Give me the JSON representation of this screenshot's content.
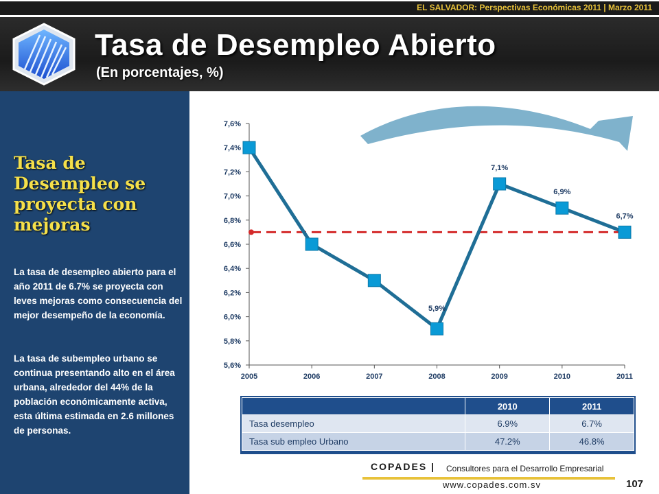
{
  "header": {
    "top_subtitle": "EL SALVADOR: Perspectivas Económicas 2011 | Marzo 2011",
    "title": "Tasa de Desempleo Abierto",
    "subtitle": "(En porcentajes, %)"
  },
  "sidebar": {
    "heading": "Tasa de Desempleo se proyecta con mejoras",
    "paragraph1": "La tasa de desempleo abierto para el año 2011 de 6.7% se proyecta con leves mejoras como consecuencia del mejor desempeño de la economía.",
    "paragraph2": "La tasa de subempleo urbano se continua presentando alto en el área urbana, alrededor del 44% de la población económicamente activa, esta última estimada en 2.6 millones de personas."
  },
  "chart_data": {
    "type": "line",
    "x": [
      "2005",
      "2006",
      "2007",
      "2008",
      "2009",
      "2010",
      "2011"
    ],
    "values": [
      7.4,
      6.6,
      6.3,
      5.9,
      7.1,
      6.9,
      6.7
    ],
    "data_labels": [
      "",
      "",
      "",
      "5,9%",
      "7,1%",
      "6,9%",
      "6,7%"
    ],
    "y_ticks": [
      "5,6%",
      "5,8%",
      "6,0%",
      "6,2%",
      "6,4%",
      "6,6%",
      "6,8%",
      "7,0%",
      "7,2%",
      "7,4%",
      "7,6%"
    ],
    "ylim": [
      5.6,
      7.6
    ],
    "reference_line": 6.7,
    "colors": {
      "line": "#1f6e96",
      "marker": "#0a9ad6",
      "reference": "#d42a2a",
      "arrow": "#7fb2cc"
    }
  },
  "table": {
    "headers": [
      "",
      "2010",
      "2011"
    ],
    "rows": [
      {
        "label": "Tasa desempleo",
        "v2010": "6.9%",
        "v2011": "6.7%"
      },
      {
        "label": "Tasa sub empleo Urbano",
        "v2010": "47.2%",
        "v2011": "46.8%"
      }
    ]
  },
  "footer": {
    "brand": "COPADES |",
    "tagline": "Consultores para el Desarrollo Empresarial",
    "url": "www.copades.com.sv",
    "page": "107"
  }
}
